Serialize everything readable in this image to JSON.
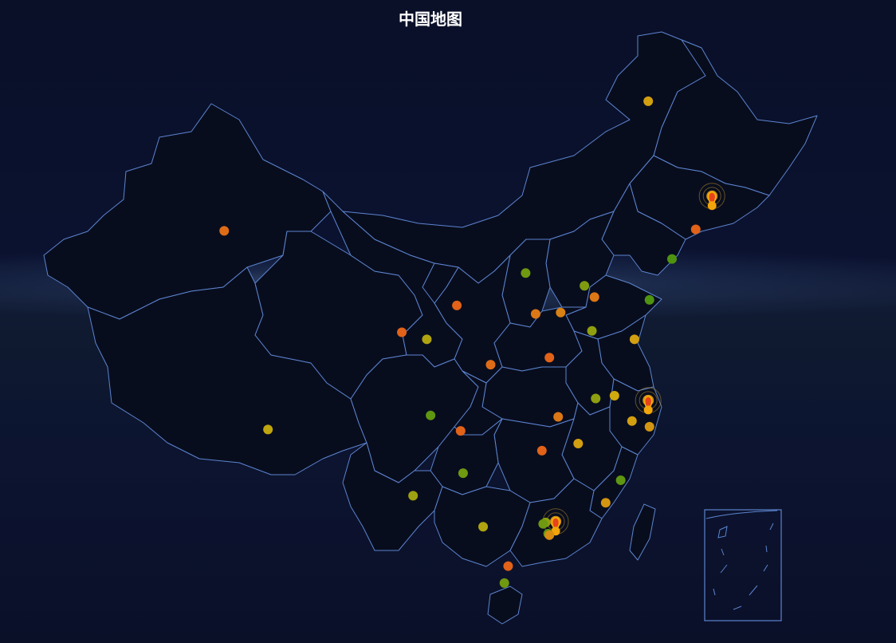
{
  "title": "中国地图",
  "colors": {
    "background": "#0b1230",
    "province_fill": "#080d1e",
    "province_stroke": "#5c84cf",
    "high": "#e8441c",
    "mid": "#cfa90f",
    "low": "#2f8f12"
  },
  "scatter_points": [
    {
      "lon": 121.5,
      "lat": 53.0,
      "level": 0.55
    },
    {
      "lon": 87.6,
      "lat": 43.8,
      "level": 0.8
    },
    {
      "lon": 126.6,
      "lat": 45.7,
      "level": 1.0,
      "highlight": true
    },
    {
      "lon": 125.3,
      "lat": 43.9,
      "level": 0.85
    },
    {
      "lon": 123.4,
      "lat": 41.8,
      "level": 0.1
    },
    {
      "lon": 121.6,
      "lat": 38.9,
      "level": 0.1
    },
    {
      "lon": 111.7,
      "lat": 40.8,
      "level": 0.2
    },
    {
      "lon": 116.4,
      "lat": 39.9,
      "level": 0.25
    },
    {
      "lon": 117.2,
      "lat": 39.1,
      "level": 0.75
    },
    {
      "lon": 106.2,
      "lat": 38.5,
      "level": 0.85
    },
    {
      "lon": 114.5,
      "lat": 38.0,
      "level": 0.7
    },
    {
      "lon": 112.5,
      "lat": 37.9,
      "level": 0.75
    },
    {
      "lon": 101.8,
      "lat": 36.6,
      "level": 0.85
    },
    {
      "lon": 103.8,
      "lat": 36.1,
      "level": 0.4
    },
    {
      "lon": 117.0,
      "lat": 36.7,
      "level": 0.3
    },
    {
      "lon": 120.4,
      "lat": 36.1,
      "level": 0.55
    },
    {
      "lon": 108.9,
      "lat": 34.3,
      "level": 0.8
    },
    {
      "lon": 113.6,
      "lat": 34.8,
      "level": 0.85
    },
    {
      "lon": 117.3,
      "lat": 31.9,
      "level": 0.3
    },
    {
      "lon": 118.8,
      "lat": 32.1,
      "level": 0.5
    },
    {
      "lon": 121.5,
      "lat": 31.2,
      "level": 1.0,
      "highlight": true
    },
    {
      "lon": 120.2,
      "lat": 30.3,
      "level": 0.55
    },
    {
      "lon": 121.6,
      "lat": 29.9,
      "level": 0.6
    },
    {
      "lon": 104.1,
      "lat": 30.7,
      "level": 0.15
    },
    {
      "lon": 106.5,
      "lat": 29.6,
      "level": 0.85
    },
    {
      "lon": 114.3,
      "lat": 30.6,
      "level": 0.75
    },
    {
      "lon": 91.1,
      "lat": 29.7,
      "level": 0.45
    },
    {
      "lon": 115.9,
      "lat": 28.7,
      "level": 0.55
    },
    {
      "lon": 113.0,
      "lat": 28.2,
      "level": 0.85
    },
    {
      "lon": 119.3,
      "lat": 26.1,
      "level": 0.15
    },
    {
      "lon": 106.7,
      "lat": 26.6,
      "level": 0.2
    },
    {
      "lon": 102.7,
      "lat": 25.0,
      "level": 0.35
    },
    {
      "lon": 118.1,
      "lat": 24.5,
      "level": 0.6
    },
    {
      "lon": 114.1,
      "lat": 22.6,
      "level": 1.0,
      "highlight": true
    },
    {
      "lon": 108.3,
      "lat": 22.8,
      "level": 0.4
    },
    {
      "lon": 113.3,
      "lat": 23.1,
      "level": 0.3
    },
    {
      "lon": 113.1,
      "lat": 23.0,
      "level": 0.2
    },
    {
      "lon": 113.5,
      "lat": 22.3,
      "level": 0.15
    },
    {
      "lon": 113.6,
      "lat": 22.2,
      "level": 0.65
    },
    {
      "lon": 110.3,
      "lat": 20.0,
      "level": 0.85
    },
    {
      "lon": 110.0,
      "lat": 18.8,
      "level": 0.2
    }
  ]
}
